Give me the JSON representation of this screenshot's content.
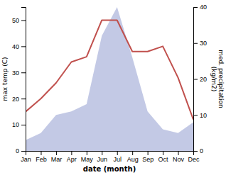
{
  "chart_data": {
    "type": "line",
    "categories": [
      "Jan",
      "Feb",
      "Mar",
      "Apr",
      "May",
      "Jun",
      "Jul",
      "Aug",
      "Sep",
      "Oct",
      "Nov",
      "Dec"
    ],
    "series": [
      {
        "type": "area",
        "axis": "y2",
        "color": "#b8c0e0",
        "values": [
          3,
          5,
          10,
          11,
          13,
          32,
          40,
          26,
          11,
          6,
          5,
          8
        ]
      },
      {
        "type": "line",
        "color": "#c0504d",
        "values": [
          15,
          20,
          26,
          34,
          36,
          50,
          50,
          38,
          38,
          40,
          28,
          12
        ]
      }
    ],
    "xlabel": "date (month)",
    "ylabel": "max temp (C)",
    "y2label": "med. precipitation\n(kg/m2)",
    "ylim": [
      0,
      55
    ],
    "yticks": [
      0,
      10,
      20,
      30,
      40,
      50
    ],
    "y2lim": [
      0,
      40
    ],
    "y2ticks": [
      0,
      10,
      20,
      30,
      40
    ],
    "grid": false
  }
}
